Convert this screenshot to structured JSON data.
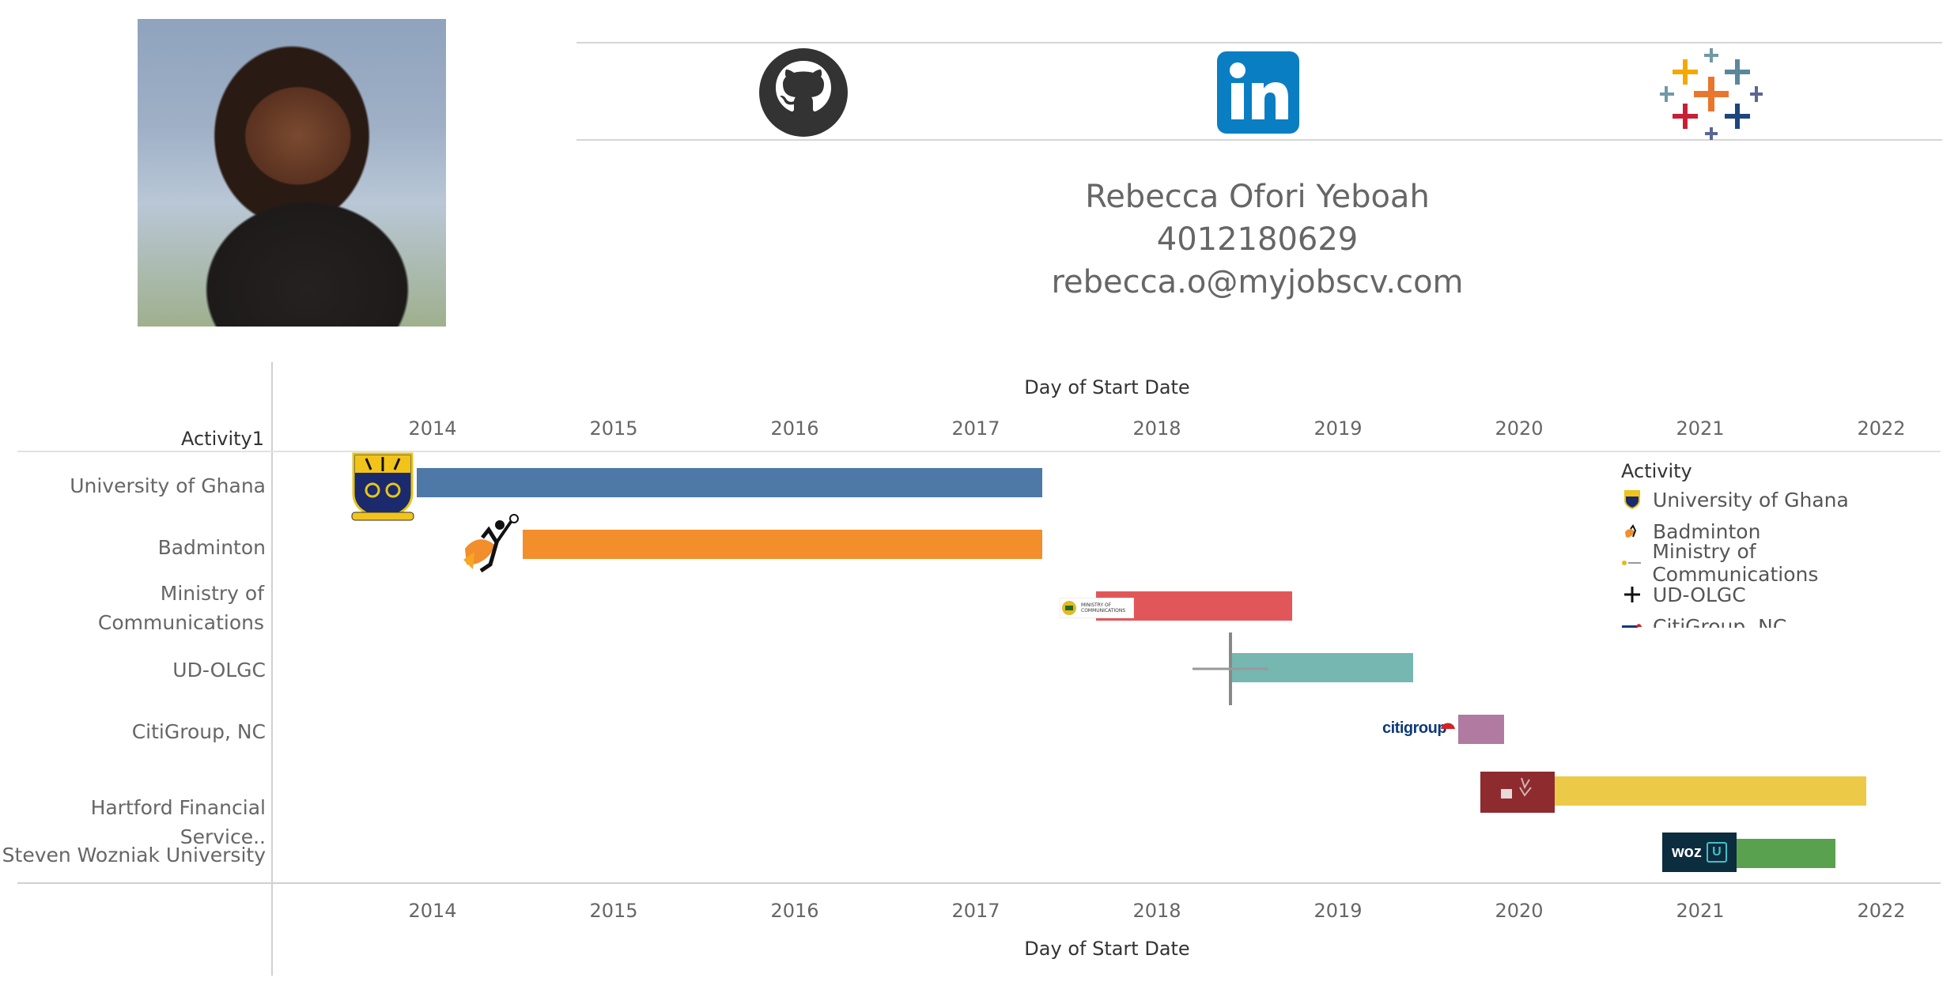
{
  "profile": {
    "name": "Rebecca Ofori Yeboah",
    "phone": "4012180629",
    "email": "rebecca.o@myjobscv.com"
  },
  "social_links": [
    {
      "name": "github-icon"
    },
    {
      "name": "linkedin-icon"
    },
    {
      "name": "tableau-icon"
    }
  ],
  "chart_data": {
    "type": "gantt",
    "x_axis_title": "Day of Start Date",
    "row_header": "Activity1",
    "x_ticks": [
      "2014",
      "2015",
      "2016",
      "2017",
      "2018",
      "2019",
      "2020",
      "2021",
      "2022"
    ],
    "xlim": [
      "2013-01-01",
      "2022-04-01"
    ],
    "rows": [
      {
        "label": "University of Ghana",
        "start": "2013-09-01",
        "end": "2017-05-15",
        "color": "#4e79a7"
      },
      {
        "label": "Badminton",
        "start": "2014-07-01",
        "end": "2017-05-15",
        "color": "#f28e2b"
      },
      {
        "label": "Ministry of Communications",
        "start": "2017-09-01",
        "end": "2018-10-01",
        "color": "#e15759"
      },
      {
        "label": "UD-OLGC",
        "start": "2018-06-01",
        "end": "2019-06-01",
        "color": "#76b7b2"
      },
      {
        "label": "CitiGroup, NC",
        "start": "2019-09-01",
        "end": "2019-12-01",
        "color": "#b07aa1"
      },
      {
        "label": "Hartford Financial Service..",
        "start": "2020-04-01",
        "end": "2021-12-01",
        "color": "#edc948"
      },
      {
        "label": "Steven Wozniak University",
        "start": "2021-03-01",
        "end": "2021-10-01",
        "color": "#59a14f"
      }
    ],
    "legend": {
      "title": "Activity",
      "items": [
        "University of Ghana",
        "Badminton",
        "Ministry of Communications",
        "UD-OLGC",
        "CitiGroup, NC"
      ]
    },
    "logo_text": {
      "ministry": "MINISTRY OF COMMUNICATIONS",
      "citigroup": "citigroup",
      "wozu": "woz"
    }
  }
}
